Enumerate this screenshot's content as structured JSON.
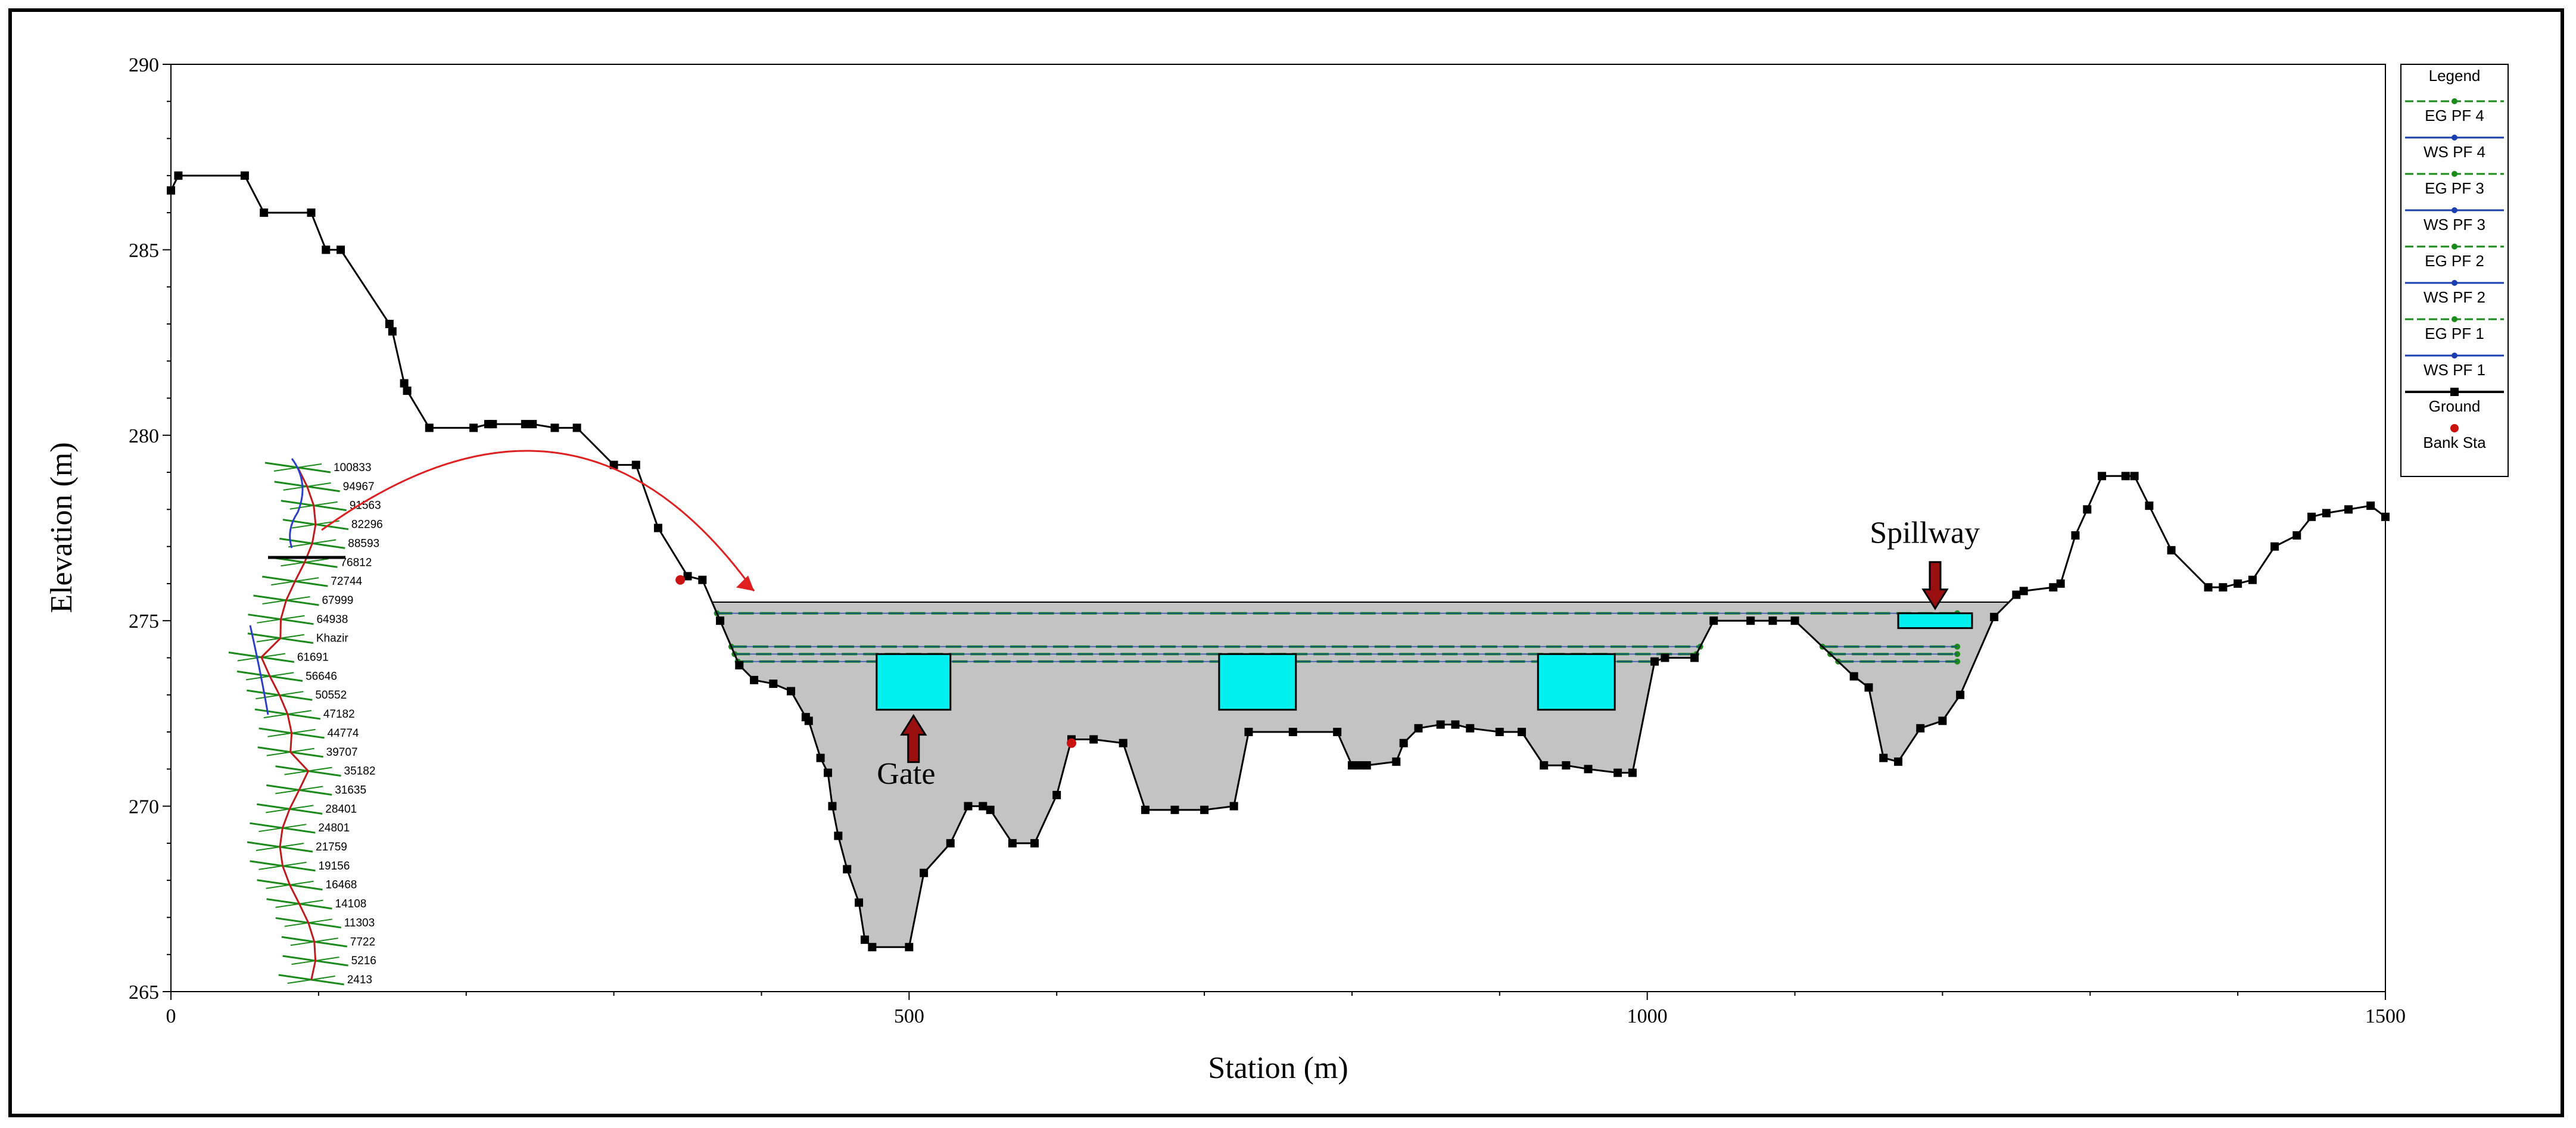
{
  "chart_data": {
    "type": "line",
    "title": "",
    "xlabel": "Station (m)",
    "ylabel": "Elevation (m)",
    "xlim": [
      0,
      1500
    ],
    "ylim": [
      265,
      290
    ],
    "xticks": [
      0,
      500,
      1000,
      1500
    ],
    "yticks": [
      265,
      270,
      275,
      280,
      285,
      290
    ],
    "grid": false,
    "legend": {
      "title": "Legend",
      "placement": "right",
      "entries": [
        "EG PF 4",
        "WS PF 4",
        "EG PF 3",
        "WS PF 3",
        "EG PF 2",
        "WS PF 2",
        "EG PF 1",
        "WS PF 1",
        "Ground",
        "Bank Sta"
      ]
    },
    "series": [
      {
        "name": "Ground",
        "color": "#000000",
        "x": [
          0,
          5,
          50,
          63,
          95,
          105,
          115,
          148,
          150,
          158,
          160,
          175,
          205,
          215,
          218,
          240,
          245,
          260,
          275,
          300,
          315,
          330,
          350,
          360,
          372,
          385,
          395,
          408,
          420,
          430,
          432,
          440,
          445,
          448,
          452,
          458,
          466,
          470,
          475,
          500,
          510,
          528,
          540,
          550,
          555,
          570,
          585,
          600,
          610,
          625,
          645,
          660,
          680,
          700,
          720,
          730,
          760,
          790,
          800,
          805,
          810,
          830,
          835,
          845,
          860,
          870,
          880,
          900,
          915,
          930,
          945,
          960,
          980,
          990,
          1005,
          1012,
          1032,
          1045,
          1070,
          1085,
          1100,
          1140,
          1150,
          1160,
          1170,
          1185,
          1200,
          1212,
          1235,
          1250,
          1255,
          1275,
          1280,
          1290,
          1298,
          1308,
          1324,
          1330,
          1340,
          1355,
          1380,
          1390,
          1400,
          1410,
          1425,
          1440,
          1450,
          1460,
          1475,
          1490,
          1500
        ],
        "y": [
          286.6,
          287.0,
          287.0,
          286.0,
          286.0,
          285.0,
          285.0,
          283.0,
          282.8,
          281.4,
          281.2,
          280.2,
          280.2,
          280.3,
          280.3,
          280.3,
          280.3,
          280.2,
          280.2,
          279.2,
          279.2,
          277.5,
          276.2,
          276.1,
          275.0,
          273.8,
          273.4,
          273.3,
          273.1,
          272.4,
          272.3,
          271.3,
          270.9,
          270.0,
          269.2,
          268.3,
          267.4,
          266.4,
          266.2,
          266.2,
          268.2,
          269.0,
          270.0,
          270.0,
          269.9,
          269.0,
          269.0,
          270.3,
          271.8,
          271.8,
          271.7,
          269.9,
          269.9,
          269.9,
          270.0,
          272.0,
          272.0,
          272.0,
          271.1,
          271.1,
          271.1,
          271.2,
          271.7,
          272.1,
          272.2,
          272.2,
          272.1,
          272.0,
          272.0,
          271.1,
          271.1,
          271.0,
          270.9,
          270.9,
          273.9,
          274.0,
          274.0,
          275.0,
          275.0,
          275.0,
          275.0,
          273.5,
          273.2,
          271.3,
          271.2,
          272.1,
          272.3,
          273.0,
          275.1,
          275.7,
          275.8,
          275.9,
          276.0,
          277.3,
          278.0,
          278.9,
          278.9,
          278.9,
          278.1,
          276.9,
          275.9,
          275.9,
          276.0,
          276.1,
          277.0,
          277.3,
          277.8,
          277.9,
          278.0,
          278.1,
          277.8
        ],
        "markers": true
      },
      {
        "name": "Bank Sta",
        "color": "#cc1111",
        "x": [
          345,
          610
        ],
        "y": [
          276.1,
          271.7
        ]
      },
      {
        "name": "EG PF 4",
        "color": "#1a8a1a",
        "x": [
          350,
          1210
        ],
        "y": [
          275.2,
          275.2
        ]
      },
      {
        "name": "WS PF 4",
        "color": "#1a3fb0",
        "x": [
          350,
          1210
        ],
        "y": [
          275.2,
          275.2
        ]
      },
      {
        "name": "EG PF 3",
        "color": "#1a8a1a",
        "x": [
          350,
          1210
        ],
        "y": [
          274.3,
          274.3
        ]
      },
      {
        "name": "WS PF 3",
        "color": "#1a3fb0",
        "x": [
          350,
          1210
        ],
        "y": [
          274.3,
          274.3
        ]
      },
      {
        "name": "EG PF 2",
        "color": "#1a8a1a",
        "x": [
          350,
          1210
        ],
        "y": [
          274.1,
          274.1
        ]
      },
      {
        "name": "WS PF 2",
        "color": "#1a3fb0",
        "x": [
          350,
          1210
        ],
        "y": [
          274.1,
          274.1
        ]
      },
      {
        "name": "EG PF 1",
        "color": "#1a8a1a",
        "x": [
          350,
          1210
        ],
        "y": [
          273.9,
          273.9
        ]
      },
      {
        "name": "WS PF 1",
        "color": "#1a3fb0",
        "x": [
          350,
          1210
        ],
        "y": [
          273.9,
          273.9
        ]
      }
    ],
    "dam_top": 275.5,
    "gates": [
      {
        "x0": 478,
        "x1": 528,
        "y0": 272.6,
        "y1": 274.1
      },
      {
        "x0": 710,
        "x1": 762,
        "y0": 272.6,
        "y1": 274.1
      },
      {
        "x0": 926,
        "x1": 978,
        "y0": 272.6,
        "y1": 274.1
      }
    ],
    "spillway": {
      "x0": 1170,
      "x1": 1220,
      "y0": 274.8,
      "y1": 275.2
    },
    "annotations": [
      {
        "text": "Gate",
        "x": 498,
        "y": 270.6
      },
      {
        "text": "Spillway",
        "x": 1188,
        "y": 277.1
      }
    ],
    "inset_labels": [
      "100833",
      "94967",
      "91563",
      "82296",
      "88593",
      "76812",
      "72744",
      "67999",
      "64938",
      "Khazir",
      "61691",
      "56646",
      "50552",
      "47182",
      "44774",
      "39707",
      "35182",
      "31635",
      "28401",
      "24801",
      "21759",
      "19156",
      "16468",
      "14108",
      "11303",
      "7722",
      "5216",
      "2413"
    ]
  }
}
